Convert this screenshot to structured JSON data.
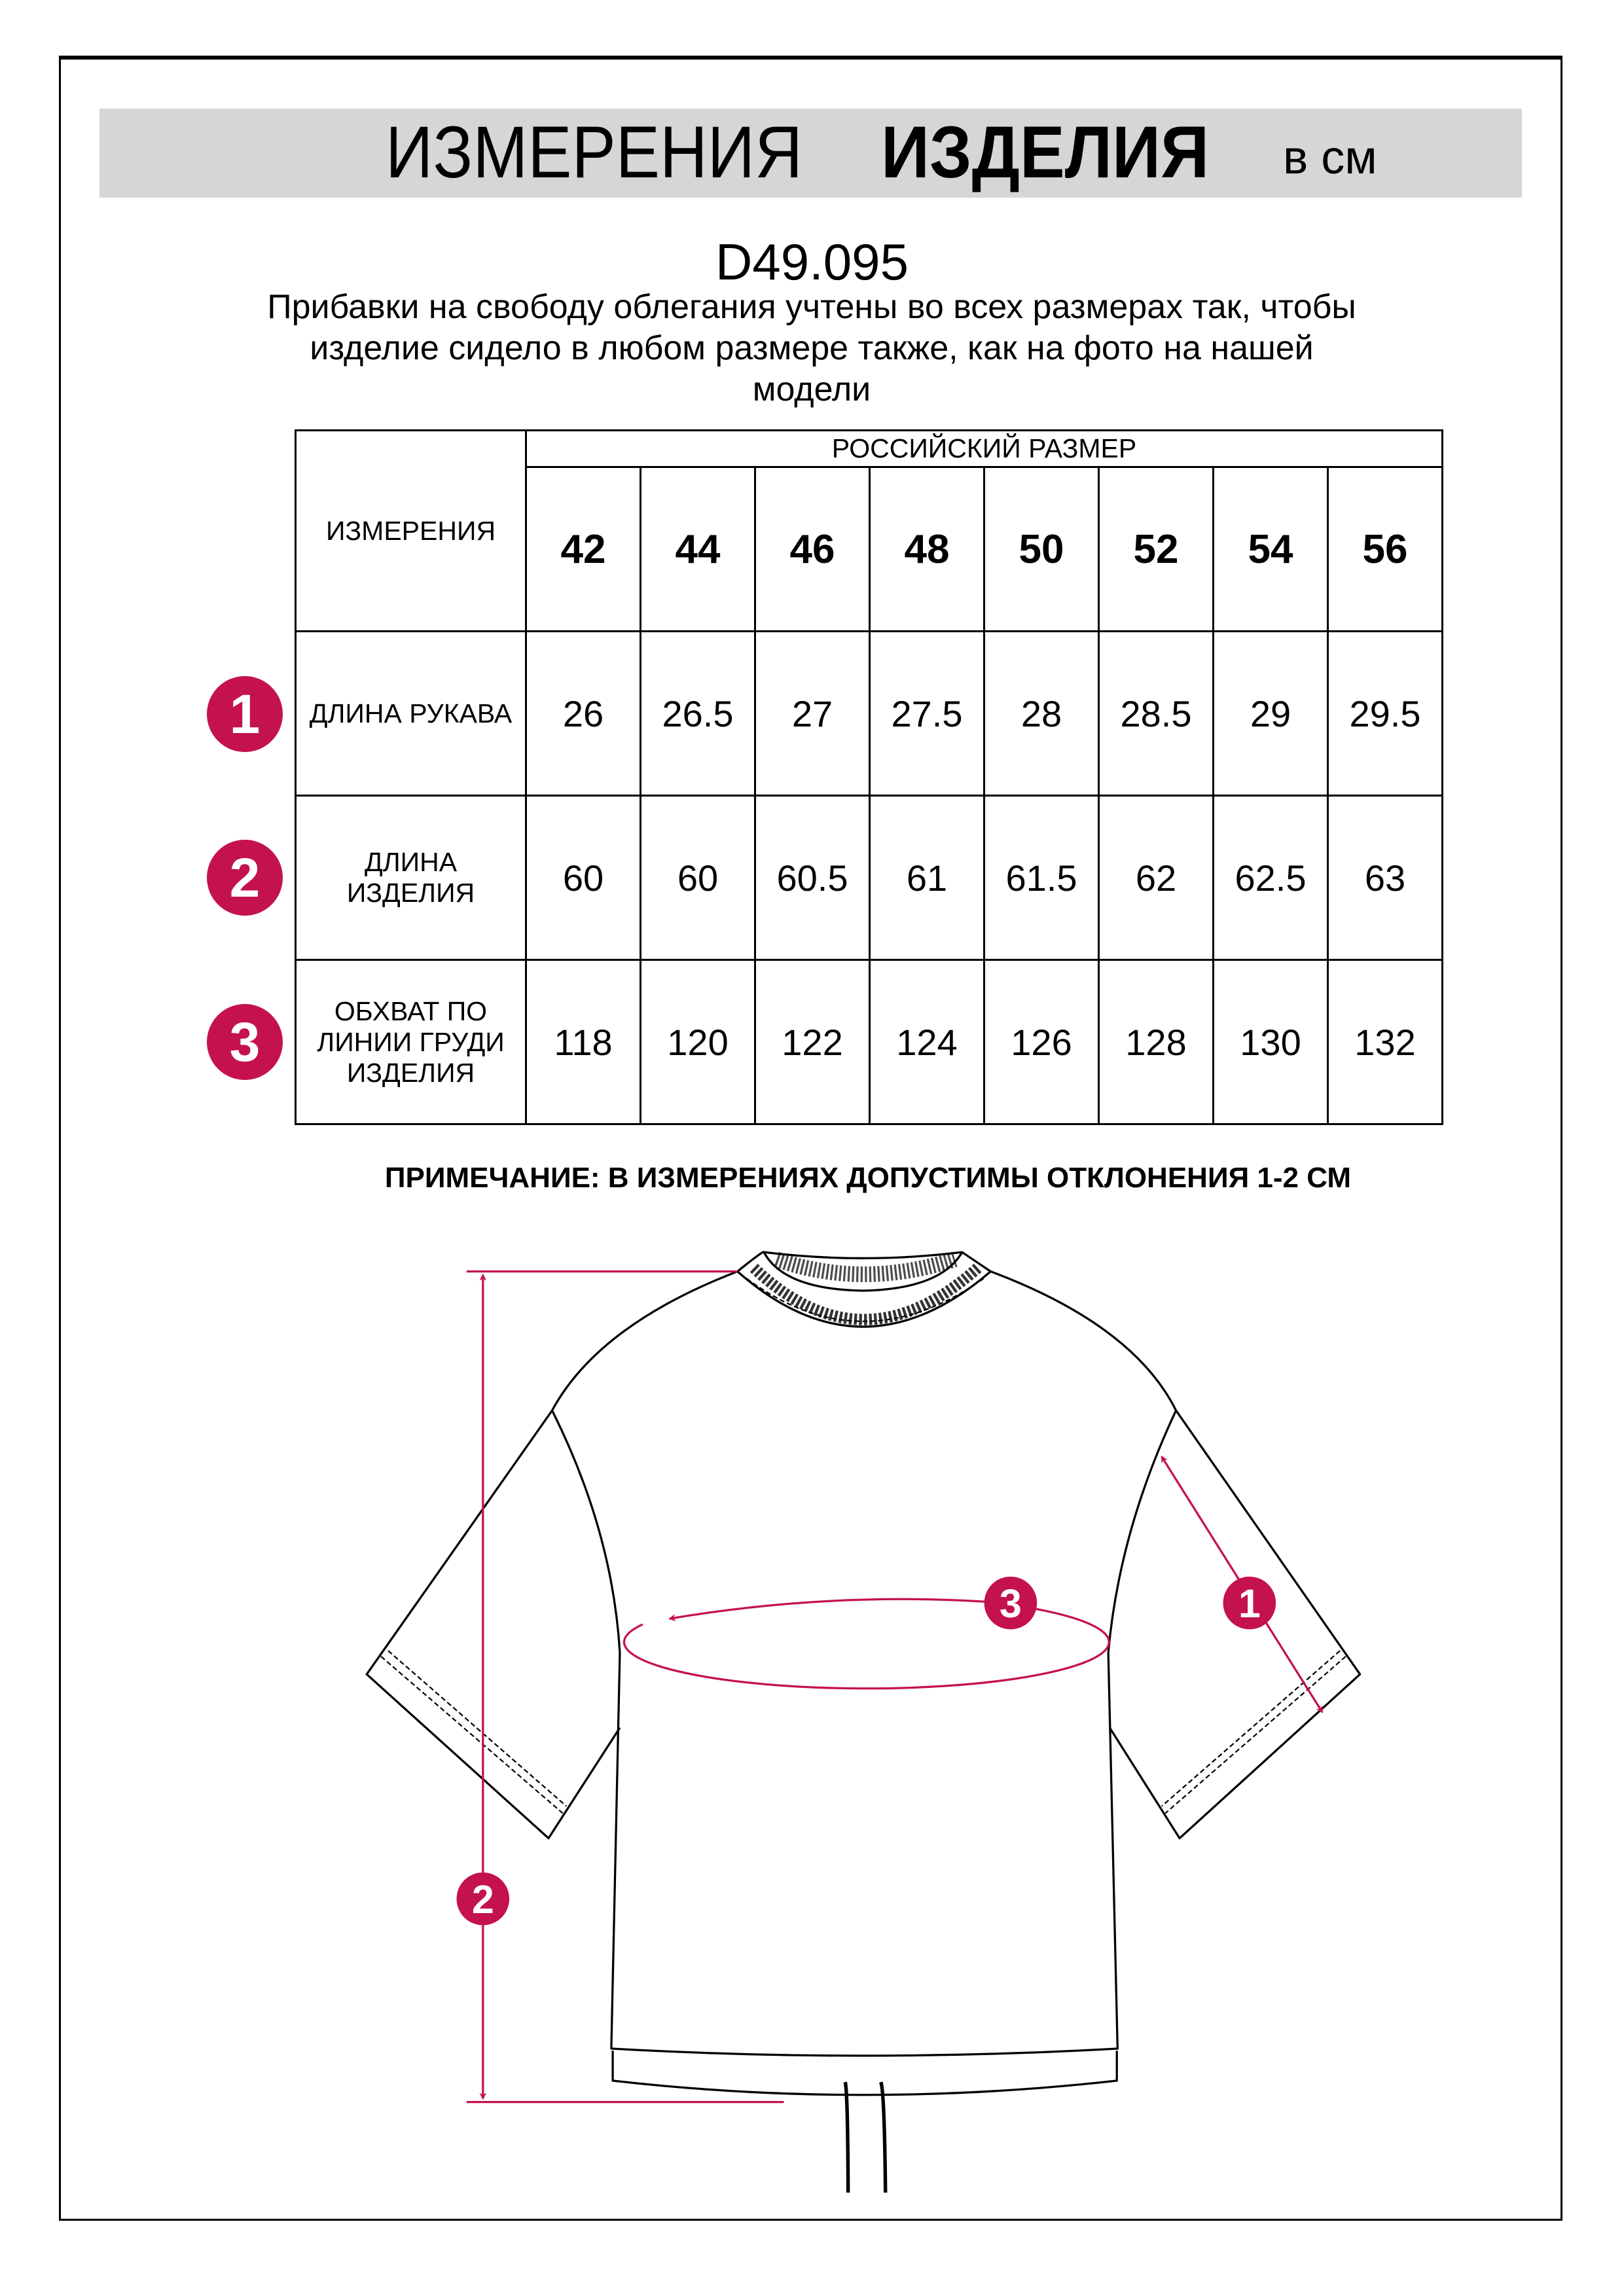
{
  "header": {
    "title_part1": "ИЗМЕРЕНИЯ",
    "title_part2": "ИЗДЕЛИЯ",
    "unit": "в см"
  },
  "product_code": "D49.095",
  "description_lines": [
    "Прибавки на свободу облегания учтены во всех размерах так, чтобы",
    "изделие сидело в любом размере также, как на фото на нашей",
    "модели"
  ],
  "table": {
    "measurements_header": "ИЗМЕРЕНИЯ",
    "size_group_header": "РОССИЙСКИЙ РАЗМЕР",
    "sizes": [
      "42",
      "44",
      "46",
      "48",
      "50",
      "52",
      "54",
      "56"
    ],
    "rows": [
      {
        "marker": "1",
        "label": "ДЛИНА РУКАВА",
        "values": [
          "26",
          "26.5",
          "27",
          "27.5",
          "28",
          "28.5",
          "29",
          "29.5"
        ]
      },
      {
        "marker": "2",
        "label_lines": [
          "ДЛИНА",
          "ИЗДЕЛИЯ"
        ],
        "values": [
          "60",
          "60",
          "60.5",
          "61",
          "61.5",
          "62",
          "62.5",
          "63"
        ]
      },
      {
        "marker": "3",
        "label_lines": [
          "ОБХВАТ ПО",
          "ЛИНИИ ГРУДИ",
          "ИЗДЕЛИЯ"
        ],
        "values": [
          "118",
          "120",
          "122",
          "124",
          "126",
          "128",
          "130",
          "132"
        ]
      }
    ]
  },
  "note": "ПРИМЕЧАНИЕ: В ИЗМЕРЕНИЯХ ДОПУСТИМЫ ОТКЛОНЕНИЯ 1-2 СМ",
  "diagram": {
    "markers": [
      "1",
      "2",
      "3"
    ],
    "accent_color": "#c4124e"
  }
}
